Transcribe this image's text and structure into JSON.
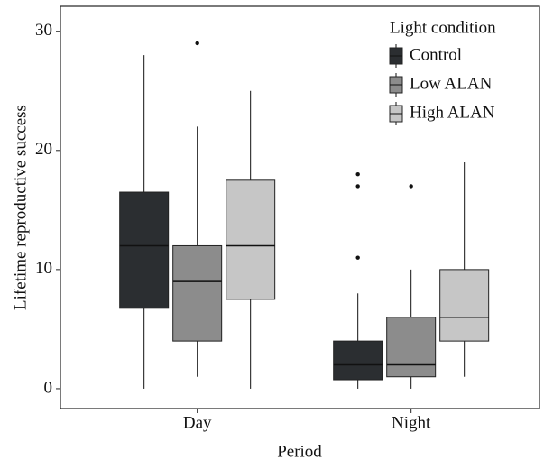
{
  "chart_data": {
    "type": "box",
    "x_label": "Period",
    "y_label": "Lifetime reproductive success",
    "categories": [
      "Day",
      "Night"
    ],
    "ylim": [
      -1.67,
      32.1
    ],
    "yticks": [
      0,
      10,
      20,
      30
    ],
    "legend_title": "Light condition",
    "legend_position": "top-right",
    "series": [
      {
        "name": "Control",
        "color": "#2b2e31",
        "boxes": [
          {
            "min": 0,
            "q1": 6.75,
            "median": 12,
            "q3": 16.5,
            "max": 28,
            "outliers": []
          },
          {
            "min": 0,
            "q1": 0.75,
            "median": 2,
            "q3": 4,
            "max": 8,
            "outliers": [
              11,
              17,
              18
            ]
          }
        ]
      },
      {
        "name": "Low ALAN",
        "color": "#8c8c8c",
        "boxes": [
          {
            "min": 1,
            "q1": 4,
            "median": 9,
            "q3": 12,
            "max": 22,
            "outliers": [
              29
            ]
          },
          {
            "min": 0,
            "q1": 1,
            "median": 2,
            "q3": 6,
            "max": 10,
            "outliers": [
              17
            ]
          }
        ]
      },
      {
        "name": "High ALAN",
        "color": "#c6c6c6",
        "boxes": [
          {
            "min": 0,
            "q1": 7.5,
            "median": 12,
            "q3": 17.5,
            "max": 25,
            "outliers": []
          },
          {
            "min": 1,
            "q1": 4,
            "median": 6,
            "q3": 10,
            "max": 19,
            "outliers": []
          }
        ]
      }
    ]
  }
}
